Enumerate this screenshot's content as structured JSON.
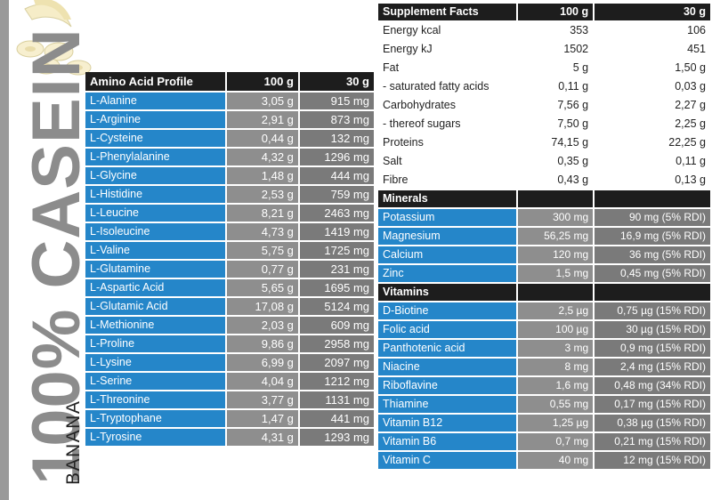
{
  "brand": "100% CASEIN",
  "flavor": "BANANA",
  "amino": {
    "header": [
      "Amino Acid Profile",
      "100 g",
      "30 g"
    ],
    "rows": [
      [
        "L-Alanine",
        "3,05 g",
        "915 mg"
      ],
      [
        "L-Arginine",
        "2,91 g",
        "873 mg"
      ],
      [
        "L-Cysteine",
        "0,44 g",
        "132 mg"
      ],
      [
        "L-Phenylalanine",
        "4,32 g",
        "1296 mg"
      ],
      [
        "L-Glycine",
        "1,48 g",
        "444 mg"
      ],
      [
        "L-Histidine",
        "2,53 g",
        "759 mg"
      ],
      [
        "L-Leucine",
        "8,21 g",
        "2463 mg"
      ],
      [
        "L-Isoleucine",
        "4,73 g",
        "1419 mg"
      ],
      [
        "L-Valine",
        "5,75 g",
        "1725 mg"
      ],
      [
        "L-Glutamine",
        "0,77 g",
        "231 mg"
      ],
      [
        "L-Aspartic Acid",
        "5,65 g",
        "1695 mg"
      ],
      [
        "L-Glutamic Acid",
        "17,08 g",
        "5124 mg"
      ],
      [
        "L-Methionine",
        "2,03 g",
        "609 mg"
      ],
      [
        "L-Proline",
        "9,86 g",
        "2958 mg"
      ],
      [
        "L-Lysine",
        "6,99 g",
        "2097 mg"
      ],
      [
        "L-Serine",
        "4,04 g",
        "1212 mg"
      ],
      [
        "L-Threonine",
        "3,77 g",
        "1131 mg"
      ],
      [
        "L-Tryptophane",
        "1,47 g",
        "441 mg"
      ],
      [
        "L-Tyrosine",
        "4,31 g",
        "1293 mg"
      ]
    ]
  },
  "supplement": {
    "header": [
      "Supplement Facts",
      "100 g",
      "30 g"
    ],
    "rows": [
      [
        "Energy  kcal",
        "353",
        "106"
      ],
      [
        "Energy  kJ",
        "1502",
        "451"
      ],
      [
        "Fat",
        "5 g",
        "1,50 g"
      ],
      [
        "- saturated fatty acids",
        "0,11 g",
        "0,03 g"
      ],
      [
        "Carbohydrates",
        "7,56 g",
        "2,27 g"
      ],
      [
        "- thereof sugars",
        "7,50 g",
        "2,25 g"
      ],
      [
        "Proteins",
        "74,15 g",
        "22,25 g"
      ],
      [
        "Salt",
        "0,35 g",
        "0,11 g"
      ],
      [
        "Fibre",
        "0,43 g",
        "0,13 g"
      ]
    ],
    "minerals_title": "Minerals",
    "minerals": [
      [
        "Potassium",
        "300 mg",
        "90 mg (5% RDI)"
      ],
      [
        "Magnesium",
        "56,25 mg",
        "16,9 mg (5% RDI)"
      ],
      [
        "Calcium",
        "120 mg",
        "36 mg (5% RDI)"
      ],
      [
        "Zinc",
        "1,5 mg",
        "0,45 mg (5% RDI)"
      ]
    ],
    "vitamins_title": "Vitamins",
    "vitamins": [
      [
        "D-Biotine",
        "2,5 µg",
        "0,75 µg (15% RDI)"
      ],
      [
        "Folic acid",
        "100 µg",
        "30 µg (15% RDI)"
      ],
      [
        "Panthotenic acid",
        "3 mg",
        "0,9 mg (15% RDI)"
      ],
      [
        "Niacine",
        "8 mg",
        "2,4 mg (15% RDI)"
      ],
      [
        "Riboflavine",
        "1,6 mg",
        "0,48 mg (34% RDI)"
      ],
      [
        "Thiamine",
        "0,55 mg",
        "0,17 mg (15% RDI)"
      ],
      [
        "Vitamin B12",
        "1,25 µg",
        "0,38 µg (15% RDI)"
      ],
      [
        "Vitamin B6",
        "0,7 mg",
        "0,21 mg (15% RDI)"
      ],
      [
        "Vitamin C",
        "40 mg",
        "12 mg (15% RDI)"
      ]
    ]
  },
  "colors": {
    "blue": "#2586c9",
    "gray": "#8e8e8e",
    "dark": "#1d1d1d",
    "brand_gray": "#8c8c8c"
  }
}
